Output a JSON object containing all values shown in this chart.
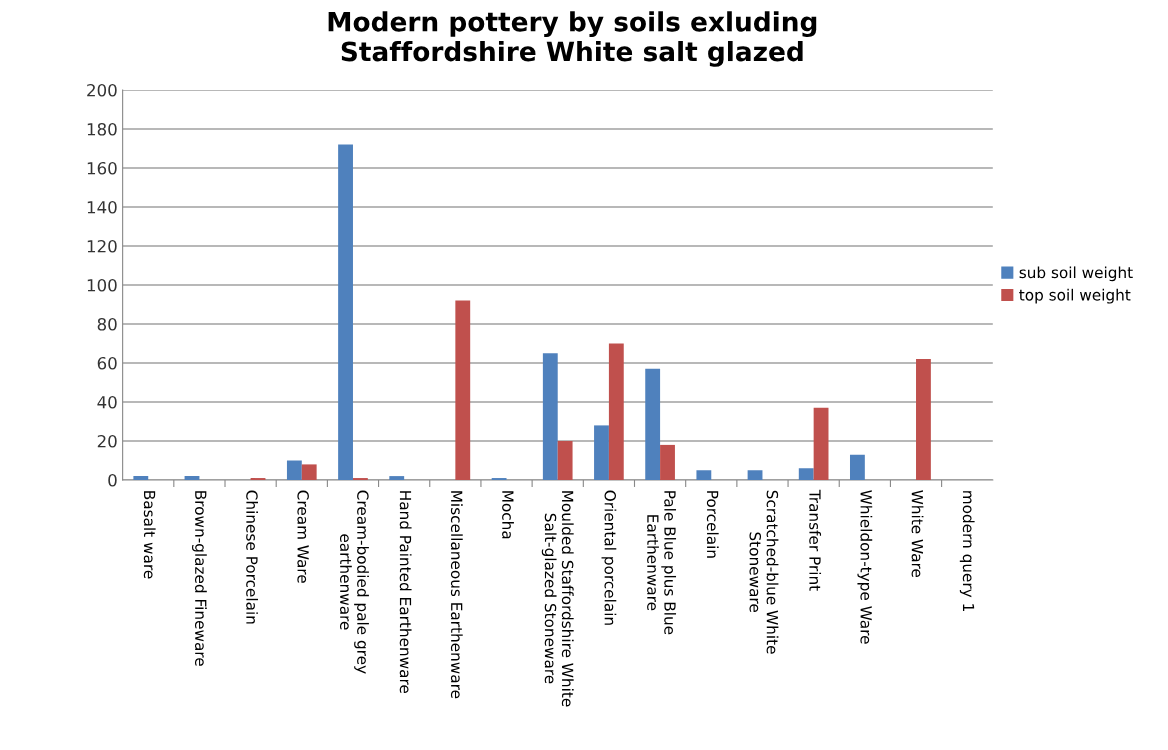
{
  "chart_data": {
    "type": "bar",
    "title": "Modern pottery by soils exluding\nStaffordshire White salt glazed",
    "categories": [
      "Basalt ware",
      "Brown-glazed Fineware",
      "Chinese Porcelain",
      "Cream Ware",
      "Cream-bodied pale grey\nearthenware",
      "Hand Painted Earthenware",
      "Miscellaneous Earthenware",
      "Mocha",
      "Moulded Staffordshire White\nSalt-glazed Stoneware",
      "Oriental porcelain",
      "Pale Blue plus Blue\nEarthenware",
      "Porcelain",
      "Scratched-blue White\nStoneware",
      "Transfer Print",
      "Whieldon-type Ware",
      "White Ware",
      "modern query 1"
    ],
    "series": [
      {
        "name": "sub soil weight",
        "color": "#4f81bd",
        "values": [
          2,
          2,
          null,
          10,
          172,
          2,
          null,
          1,
          65,
          28,
          57,
          5,
          5,
          6,
          13,
          null,
          null
        ]
      },
      {
        "name": "top soil weight",
        "color": "#c0504d",
        "values": [
          null,
          null,
          1,
          8,
          1,
          null,
          92,
          null,
          20,
          70,
          18,
          null,
          null,
          37,
          null,
          62,
          null
        ]
      }
    ],
    "ylim": [
      0,
      200
    ],
    "yticks": [
      0,
      20,
      40,
      60,
      80,
      100,
      120,
      140,
      160,
      180,
      200
    ],
    "grid": "y",
    "legend": "right"
  }
}
